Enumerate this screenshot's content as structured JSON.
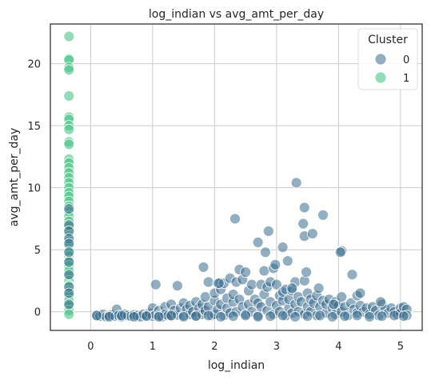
{
  "chart_data": {
    "type": "scatter",
    "title": "log_indian vs avg_amt_per_day",
    "xlabel": "log_indian",
    "ylabel": "avg_amt_per_day",
    "xlim": [
      -0.65,
      5.35
    ],
    "ylim": [
      -1.5,
      23.2
    ],
    "xticks": [
      0,
      1,
      2,
      3,
      4,
      5
    ],
    "yticks": [
      0,
      5,
      10,
      15,
      20
    ],
    "grid": true,
    "legend": {
      "title": "Cluster",
      "placement": "top-right"
    },
    "colors": {
      "0": "#3b6b8c",
      "1": "#3dbf7f",
      "edge": "#ffffff",
      "text": "#262626",
      "grid": "#cccccc",
      "frame": "#262626"
    },
    "series": [
      {
        "name": "0",
        "points": [
          [
            0.1,
            -0.3
          ],
          [
            0.15,
            -0.35
          ],
          [
            0.2,
            -0.2
          ],
          [
            0.25,
            -0.4
          ],
          [
            0.3,
            -0.3
          ],
          [
            0.35,
            -0.25
          ],
          [
            0.4,
            -0.35
          ],
          [
            0.42,
            0.2
          ],
          [
            0.45,
            -0.3
          ],
          [
            0.5,
            -0.4
          ],
          [
            0.55,
            -0.2
          ],
          [
            0.6,
            -0.3
          ],
          [
            0.65,
            -0.35
          ],
          [
            0.7,
            -0.25
          ],
          [
            0.75,
            -0.3
          ],
          [
            0.8,
            -0.4
          ],
          [
            0.85,
            -0.2
          ],
          [
            0.9,
            -0.3
          ],
          [
            0.95,
            -0.1
          ],
          [
            1.0,
            0.3
          ],
          [
            1.0,
            -0.35
          ],
          [
            1.05,
            -0.25
          ],
          [
            1.1,
            0.1
          ],
          [
            1.1,
            -0.3
          ],
          [
            1.15,
            -0.4
          ],
          [
            1.2,
            0.4
          ],
          [
            1.2,
            -0.2
          ],
          [
            1.25,
            -0.3
          ],
          [
            1.3,
            0.6
          ],
          [
            1.3,
            -0.35
          ],
          [
            1.35,
            0.1
          ],
          [
            1.4,
            -0.25
          ],
          [
            1.45,
            0.3
          ],
          [
            1.5,
            -0.3
          ],
          [
            1.5,
            0.7
          ],
          [
            1.55,
            0.2
          ],
          [
            1.6,
            -0.2
          ],
          [
            1.6,
            0.5
          ],
          [
            1.65,
            0.0
          ],
          [
            1.7,
            -0.3
          ],
          [
            1.7,
            0.8
          ],
          [
            1.75,
            0.3
          ],
          [
            1.8,
            0.6
          ],
          [
            1.8,
            -0.2
          ],
          [
            1.85,
            1.2
          ],
          [
            1.85,
            0.1
          ],
          [
            1.9,
            2.4
          ],
          [
            1.9,
            0.4
          ],
          [
            1.95,
            -0.3
          ],
          [
            2.0,
            0.9
          ],
          [
            2.0,
            1.5
          ],
          [
            2.0,
            -0.2
          ],
          [
            2.05,
            2.3
          ],
          [
            2.05,
            0.2
          ],
          [
            2.1,
            0.6
          ],
          [
            2.1,
            1.8
          ],
          [
            2.15,
            -0.3
          ],
          [
            2.15,
            2.3
          ],
          [
            2.2,
            0.3
          ],
          [
            2.2,
            1.1
          ],
          [
            2.25,
            2.7
          ],
          [
            2.25,
            -0.1
          ],
          [
            2.3,
            0.8
          ],
          [
            2.3,
            1.4
          ],
          [
            2.35,
            2.4
          ],
          [
            2.35,
            0.0
          ],
          [
            2.4,
            3.4
          ],
          [
            2.4,
            1.0
          ],
          [
            2.45,
            0.4
          ],
          [
            2.45,
            2.6
          ],
          [
            2.5,
            3.2
          ],
          [
            2.5,
            -0.2
          ],
          [
            2.55,
            1.7
          ],
          [
            2.55,
            0.6
          ],
          [
            2.6,
            2.2
          ],
          [
            2.6,
            0.0
          ],
          [
            2.65,
            1.0
          ],
          [
            2.7,
            0.7
          ],
          [
            2.7,
            -0.3
          ],
          [
            2.75,
            2.2
          ],
          [
            2.75,
            0.4
          ],
          [
            2.8,
            1.4
          ],
          [
            2.8,
            3.3
          ],
          [
            2.85,
            0.1
          ],
          [
            2.85,
            2.0
          ],
          [
            2.9,
            2.4
          ],
          [
            2.9,
            0.8
          ],
          [
            2.95,
            3.5
          ],
          [
            2.95,
            -0.2
          ],
          [
            3.0,
            0.5
          ],
          [
            3.0,
            2.2
          ],
          [
            3.05,
            1.3
          ],
          [
            3.05,
            0.0
          ],
          [
            3.1,
            0.9
          ],
          [
            3.1,
            1.6
          ],
          [
            3.15,
            -0.3
          ],
          [
            3.15,
            1.8
          ],
          [
            3.2,
            0.3
          ],
          [
            3.2,
            1.0
          ],
          [
            3.25,
            1.7
          ],
          [
            3.25,
            -0.1
          ],
          [
            3.3,
            0.6
          ],
          [
            3.3,
            2.4
          ],
          [
            3.35,
            1.2
          ],
          [
            3.35,
            0.0
          ],
          [
            3.4,
            0.8
          ],
          [
            3.45,
            2.5
          ],
          [
            3.45,
            -0.2
          ],
          [
            3.5,
            1.5
          ],
          [
            3.5,
            0.4
          ],
          [
            3.55,
            0.0
          ],
          [
            3.55,
            1.0
          ],
          [
            3.6,
            0.7
          ],
          [
            3.65,
            -0.3
          ],
          [
            3.65,
            1.3
          ],
          [
            3.7,
            0.4
          ],
          [
            3.75,
            0.9
          ],
          [
            3.8,
            -0.1
          ],
          [
            3.8,
            0.6
          ],
          [
            3.85,
            1.0
          ],
          [
            3.9,
            0.3
          ],
          [
            3.95,
            -0.2
          ],
          [
            3.95,
            0.8
          ],
          [
            4.0,
            0.5
          ],
          [
            4.05,
            0.0
          ],
          [
            4.05,
            1.2
          ],
          [
            4.1,
            0.4
          ],
          [
            4.15,
            -0.3
          ],
          [
            4.2,
            0.7
          ],
          [
            4.25,
            0.2
          ],
          [
            4.3,
            1.3
          ],
          [
            4.3,
            -0.1
          ],
          [
            4.35,
            0.5
          ],
          [
            4.4,
            0.0
          ],
          [
            4.45,
            0.3
          ],
          [
            4.5,
            -0.2
          ],
          [
            4.55,
            0.4
          ],
          [
            4.6,
            0.1
          ],
          [
            4.65,
            -0.3
          ],
          [
            4.7,
            0.6
          ],
          [
            4.75,
            0.2
          ],
          [
            4.8,
            -0.1
          ],
          [
            4.85,
            0.3
          ],
          [
            4.9,
            0.0
          ],
          [
            4.95,
            -0.2
          ],
          [
            5.0,
            0.3
          ],
          [
            5.0,
            -0.1
          ],
          [
            5.05,
            0.4
          ],
          [
            5.1,
            0.2
          ],
          [
            5.1,
            -0.3
          ],
          [
            0.1,
            -0.3
          ],
          [
            0.3,
            -0.4
          ],
          [
            0.5,
            -0.3
          ],
          [
            0.7,
            -0.4
          ],
          [
            0.9,
            -0.35
          ],
          [
            1.1,
            -0.4
          ],
          [
            1.3,
            -0.3
          ],
          [
            1.5,
            -0.4
          ],
          [
            1.7,
            -0.35
          ],
          [
            1.9,
            -0.3
          ],
          [
            2.1,
            -0.4
          ],
          [
            2.3,
            -0.35
          ],
          [
            2.5,
            -0.3
          ],
          [
            2.7,
            -0.4
          ],
          [
            2.9,
            -0.35
          ],
          [
            3.1,
            -0.3
          ],
          [
            3.3,
            -0.4
          ],
          [
            3.5,
            -0.35
          ],
          [
            3.7,
            -0.3
          ],
          [
            3.9,
            -0.4
          ],
          [
            4.1,
            -0.35
          ],
          [
            4.3,
            -0.3
          ],
          [
            4.5,
            -0.4
          ],
          [
            4.7,
            -0.35
          ],
          [
            4.9,
            -0.3
          ],
          [
            5.05,
            -0.35
          ],
          [
            1.05,
            2.2
          ],
          [
            1.4,
            2.1
          ],
          [
            1.82,
            3.6
          ],
          [
            2.07,
            2.3
          ],
          [
            2.33,
            7.5
          ],
          [
            2.7,
            5.6
          ],
          [
            2.87,
            6.5
          ],
          [
            2.82,
            4.8
          ],
          [
            2.98,
            3.8
          ],
          [
            3.1,
            5.2
          ],
          [
            3.18,
            4.1
          ],
          [
            3.32,
            10.4
          ],
          [
            3.45,
            8.4
          ],
          [
            3.43,
            7.1
          ],
          [
            3.45,
            6.1
          ],
          [
            3.58,
            6.3
          ],
          [
            3.48,
            3.2
          ],
          [
            3.75,
            7.8
          ],
          [
            4.05,
            4.9
          ],
          [
            4.03,
            4.8
          ],
          [
            4.22,
            3.0
          ],
          [
            4.35,
            1.5
          ],
          [
            4.68,
            0.8
          ],
          [
            3.92,
            0.6
          ],
          [
            3.68,
            1.9
          ],
          [
            3.25,
            1.9
          ]
        ]
      },
      {
        "name": "1",
        "points": [
          [
            -0.35,
            22.2
          ],
          [
            -0.35,
            20.4
          ],
          [
            -0.35,
            20.3
          ],
          [
            -0.35,
            19.7
          ],
          [
            -0.35,
            19.5
          ],
          [
            -0.35,
            17.4
          ],
          [
            -0.35,
            15.7
          ],
          [
            -0.35,
            15.5
          ],
          [
            -0.35,
            15.0
          ],
          [
            -0.35,
            14.7
          ],
          [
            -0.35,
            13.7
          ],
          [
            -0.35,
            13.5
          ],
          [
            -0.35,
            12.3
          ],
          [
            -0.35,
            12.0
          ],
          [
            -0.35,
            11.6
          ],
          [
            -0.35,
            11.2
          ],
          [
            -0.35,
            10.8
          ],
          [
            -0.35,
            10.4
          ],
          [
            -0.35,
            10.0
          ],
          [
            -0.35,
            9.6
          ],
          [
            -0.35,
            9.3
          ],
          [
            -0.35,
            8.9
          ],
          [
            -0.35,
            8.5
          ],
          [
            -0.35,
            8.1
          ],
          [
            -0.35,
            7.7
          ],
          [
            -0.35,
            7.3
          ],
          [
            -0.35,
            6.9
          ],
          [
            -0.35,
            6.5
          ],
          [
            -0.35,
            6.1
          ],
          [
            -0.35,
            5.7
          ],
          [
            -0.35,
            5.3
          ],
          [
            -0.35,
            4.9
          ],
          [
            -0.35,
            4.5
          ],
          [
            -0.35,
            4.1
          ],
          [
            -0.35,
            3.7
          ],
          [
            -0.35,
            3.3
          ],
          [
            -0.35,
            2.9
          ],
          [
            -0.35,
            2.5
          ],
          [
            -0.35,
            2.1
          ],
          [
            -0.35,
            1.7
          ],
          [
            -0.35,
            1.3
          ],
          [
            -0.35,
            0.9
          ],
          [
            -0.35,
            0.5
          ],
          [
            -0.35,
            0.1
          ],
          [
            -0.35,
            -0.2
          ]
        ]
      }
    ],
    "dark_points_cluster1": [
      [
        -0.35,
        8.3
      ],
      [
        -0.35,
        7.0
      ],
      [
        -0.35,
        6.5
      ],
      [
        -0.35,
        5.9
      ],
      [
        -0.35,
        5.5
      ],
      [
        -0.35,
        4.8
      ],
      [
        -0.35,
        4.0
      ],
      [
        -0.35,
        3.0
      ],
      [
        -0.35,
        2.0
      ],
      [
        -0.35,
        1.5
      ],
      [
        -0.35,
        0.6
      ]
    ]
  }
}
